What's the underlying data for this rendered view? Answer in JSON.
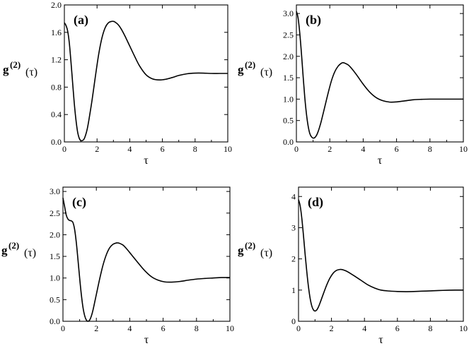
{
  "chart_data": [
    {
      "type": "line",
      "panel_label": "(a)",
      "xlabel": "τ",
      "ylabel": {
        "main": "g",
        "sup": "(2)",
        "arg": "(τ)"
      },
      "xlim": [
        0,
        10
      ],
      "ylim": [
        0,
        2.0
      ],
      "xticks": [
        0,
        2,
        4,
        6,
        8,
        10
      ],
      "xtick_labels": [
        "0",
        "2",
        "4",
        "6",
        "8",
        "10"
      ],
      "yticks": [
        0,
        0.4,
        0.8,
        1.2,
        1.6,
        2.0
      ],
      "ytick_labels": [
        "0.0",
        "0.4",
        "0.8",
        "1.2",
        "1.6",
        "2.0"
      ],
      "grid": false,
      "series": [
        {
          "x": [
            0,
            0.1,
            0.2,
            0.3,
            0.4,
            0.5,
            0.6,
            0.7,
            0.8,
            0.9,
            1.0,
            1.1,
            1.2,
            1.3,
            1.4,
            1.5,
            1.7,
            1.9,
            2.1,
            2.3,
            2.5,
            2.7,
            2.9,
            3.0,
            3.1,
            3.3,
            3.5,
            3.7,
            4.0,
            4.3,
            4.6,
            5.0,
            5.4,
            5.8,
            6.2,
            6.6,
            7.0,
            7.5,
            8.0,
            8.5,
            9.0,
            9.5,
            10.0
          ],
          "y": [
            1.74,
            1.7,
            1.62,
            1.45,
            1.18,
            0.88,
            0.58,
            0.34,
            0.16,
            0.06,
            0.02,
            0.02,
            0.04,
            0.1,
            0.19,
            0.32,
            0.62,
            0.96,
            1.28,
            1.52,
            1.67,
            1.74,
            1.76,
            1.76,
            1.75,
            1.71,
            1.64,
            1.55,
            1.4,
            1.25,
            1.11,
            0.98,
            0.92,
            0.905,
            0.915,
            0.94,
            0.97,
            0.995,
            1.005,
            1.005,
            1.0,
            1.0,
            1.0
          ]
        }
      ]
    },
    {
      "type": "line",
      "panel_label": "(b)",
      "xlabel": "τ",
      "ylabel": {
        "main": "g",
        "sup": "(2)",
        "arg": "(τ)"
      },
      "xlim": [
        0,
        10
      ],
      "ylim": [
        0,
        3.2
      ],
      "xticks": [
        0,
        2,
        4,
        6,
        8,
        10
      ],
      "xtick_labels": [
        "0",
        "2",
        "4",
        "6",
        "8",
        "10"
      ],
      "yticks": [
        0,
        0.5,
        1.0,
        1.5,
        2.0,
        2.5,
        3.0
      ],
      "ytick_labels": [
        "0.0",
        "0.5",
        "1.0",
        "1.5",
        "2.0",
        "2.5",
        "3.0"
      ],
      "grid": false,
      "series": [
        {
          "x": [
            0,
            0.1,
            0.2,
            0.3,
            0.4,
            0.5,
            0.6,
            0.7,
            0.8,
            0.9,
            1.0,
            1.1,
            1.2,
            1.3,
            1.4,
            1.5,
            1.7,
            1.9,
            2.1,
            2.3,
            2.5,
            2.7,
            2.8,
            2.9,
            3.1,
            3.3,
            3.6,
            4.0,
            4.4,
            4.8,
            5.2,
            5.6,
            6.0,
            6.5,
            7.0,
            7.5,
            8.0,
            9.0,
            10.0
          ],
          "y": [
            3.05,
            2.9,
            2.55,
            2.08,
            1.55,
            1.05,
            0.66,
            0.38,
            0.2,
            0.12,
            0.09,
            0.1,
            0.15,
            0.24,
            0.36,
            0.5,
            0.82,
            1.14,
            1.43,
            1.64,
            1.77,
            1.84,
            1.85,
            1.84,
            1.8,
            1.72,
            1.57,
            1.35,
            1.16,
            1.03,
            0.96,
            0.93,
            0.935,
            0.96,
            0.985,
            0.995,
            1.0,
            1.0,
            1.0
          ]
        }
      ]
    },
    {
      "type": "line",
      "panel_label": "(c)",
      "xlabel": "τ",
      "ylabel": {
        "main": "g",
        "sup": "(2)",
        "arg": "(τ)"
      },
      "xlim": [
        0,
        10
      ],
      "ylim": [
        0,
        3.1
      ],
      "xticks": [
        0,
        2,
        4,
        6,
        8,
        10
      ],
      "xtick_labels": [
        "0",
        "2",
        "4",
        "6",
        "8",
        "10"
      ],
      "yticks": [
        0,
        0.5,
        1.0,
        1.5,
        2.0,
        2.5,
        3.0
      ],
      "ytick_labels": [
        "0.0",
        "0.5",
        "1.0",
        "1.5",
        "2.0",
        "2.5",
        "3.0"
      ],
      "grid": false,
      "series": [
        {
          "x": [
            0,
            0.1,
            0.2,
            0.3,
            0.4,
            0.5,
            0.6,
            0.7,
            0.8,
            0.9,
            1.0,
            1.1,
            1.2,
            1.3,
            1.4,
            1.5,
            1.6,
            1.7,
            1.8,
            2.0,
            2.2,
            2.4,
            2.6,
            2.8,
            3.0,
            3.2,
            3.3,
            3.4,
            3.6,
            3.8,
            4.1,
            4.5,
            4.9,
            5.3,
            5.7,
            6.1,
            6.5,
            7.0,
            7.5,
            8.0,
            8.5,
            9.0,
            9.5,
            10.0
          ],
          "y": [
            2.85,
            2.65,
            2.45,
            2.36,
            2.33,
            2.32,
            2.28,
            2.12,
            1.82,
            1.42,
            1.0,
            0.62,
            0.32,
            0.13,
            0.03,
            0.0,
            0.03,
            0.12,
            0.26,
            0.62,
            0.98,
            1.3,
            1.54,
            1.7,
            1.78,
            1.81,
            1.81,
            1.8,
            1.76,
            1.68,
            1.54,
            1.35,
            1.17,
            1.03,
            0.95,
            0.91,
            0.905,
            0.92,
            0.95,
            0.975,
            0.99,
            1.0,
            1.01,
            1.01
          ]
        }
      ]
    },
    {
      "type": "line",
      "panel_label": "(d)",
      "xlabel": "τ",
      "ylabel": {
        "main": "g",
        "sup": "(2)",
        "arg": "(τ)"
      },
      "xlim": [
        0,
        10
      ],
      "ylim": [
        0,
        4.3
      ],
      "xticks": [
        0,
        2,
        4,
        6,
        8,
        10
      ],
      "xtick_labels": [
        "0",
        "2",
        "4",
        "6",
        "8",
        "10"
      ],
      "yticks": [
        0,
        1,
        2,
        3,
        4
      ],
      "ytick_labels": [
        "0",
        "1",
        "2",
        "3",
        "4"
      ],
      "grid": false,
      "series": [
        {
          "x": [
            0,
            0.1,
            0.2,
            0.3,
            0.4,
            0.5,
            0.6,
            0.7,
            0.8,
            0.9,
            1.0,
            1.1,
            1.2,
            1.3,
            1.5,
            1.7,
            1.9,
            2.1,
            2.3,
            2.5,
            2.6,
            2.7,
            2.9,
            3.1,
            3.4,
            3.8,
            4.2,
            4.6,
            5.0,
            5.5,
            6.0,
            6.5,
            7.0,
            7.5,
            8.0,
            8.5,
            9.0,
            9.5,
            10.0
          ],
          "y": [
            3.9,
            3.7,
            3.3,
            2.75,
            2.15,
            1.6,
            1.12,
            0.75,
            0.5,
            0.37,
            0.33,
            0.36,
            0.45,
            0.58,
            0.87,
            1.15,
            1.38,
            1.54,
            1.63,
            1.66,
            1.66,
            1.65,
            1.61,
            1.55,
            1.45,
            1.31,
            1.17,
            1.07,
            1.0,
            0.97,
            0.955,
            0.95,
            0.955,
            0.965,
            0.975,
            0.985,
            0.995,
            1.0,
            1.0
          ]
        }
      ]
    }
  ]
}
